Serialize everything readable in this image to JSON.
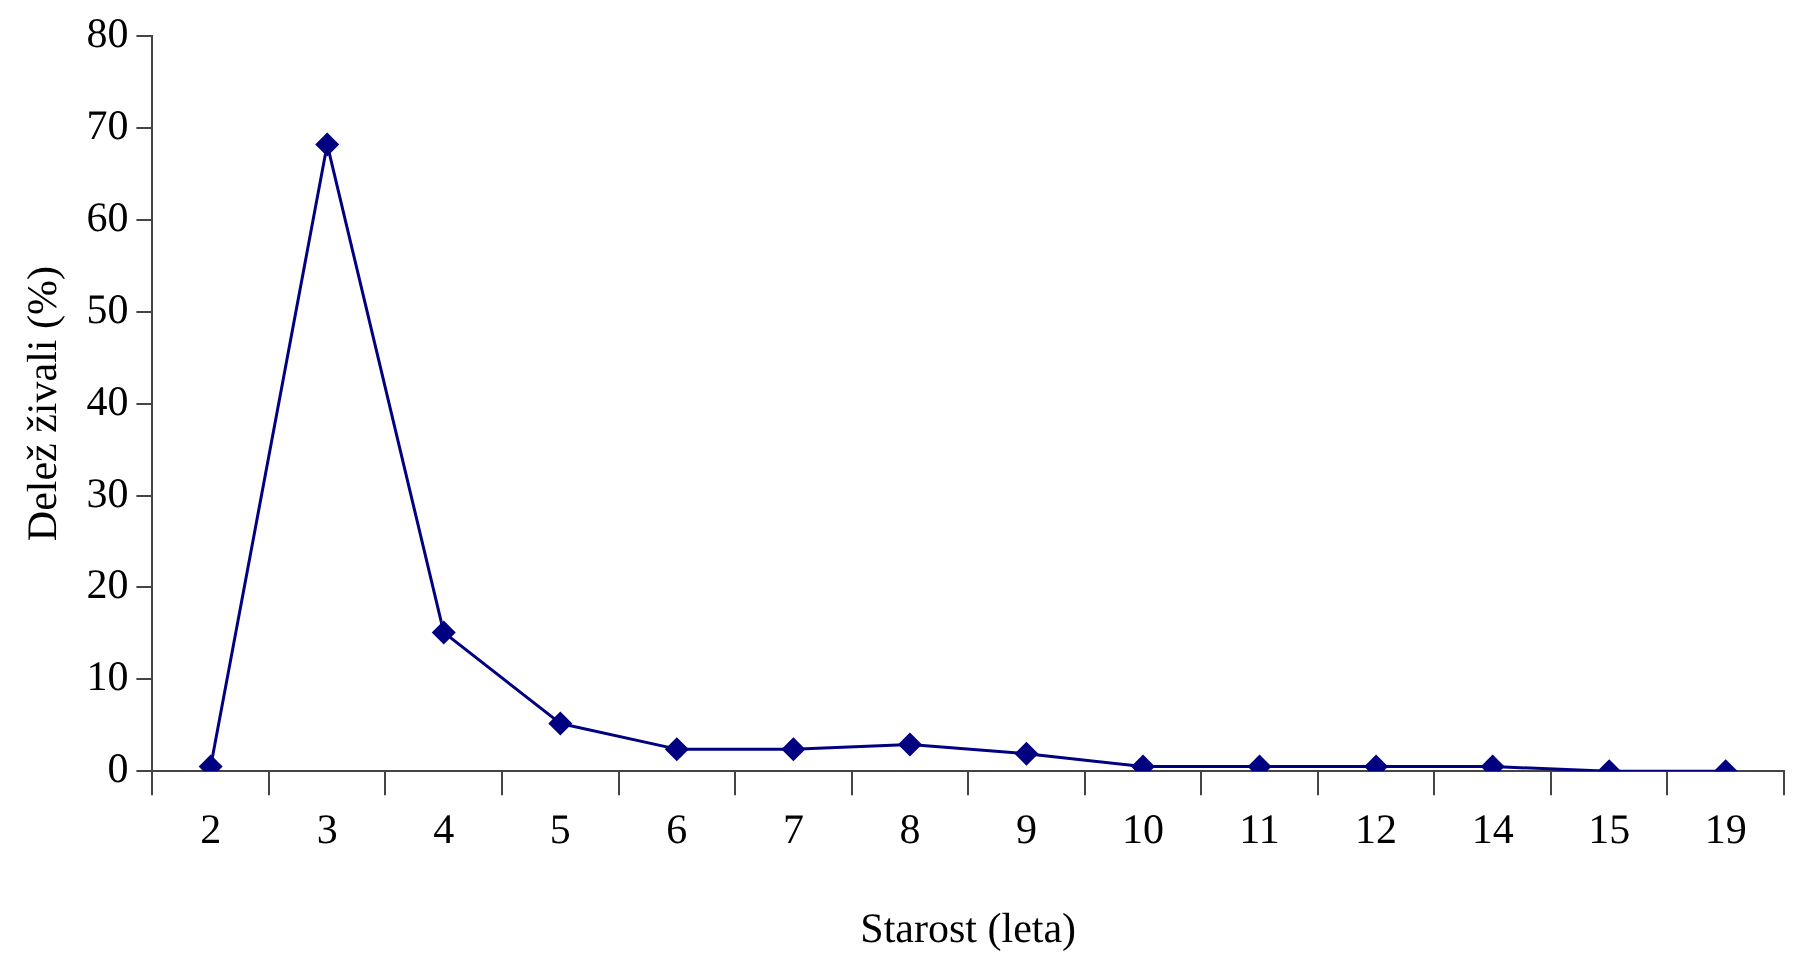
{
  "chart_data": {
    "type": "line",
    "xlabel": "Starost (leta)",
    "ylabel": "Delež živali (%)",
    "categories": [
      "2",
      "3",
      "4",
      "5",
      "6",
      "7",
      "8",
      "9",
      "10",
      "11",
      "12",
      "14",
      "15",
      "19"
    ],
    "series": [
      {
        "color": "#000080",
        "values": [
          0.5,
          68.2,
          15.1,
          5.2,
          2.4,
          2.4,
          2.9,
          1.9,
          0.5,
          0.5,
          0.5,
          0.5,
          0,
          0
        ]
      }
    ],
    "ylim": [
      0,
      80
    ],
    "yticks": [
      0,
      10,
      20,
      30,
      40,
      50,
      60,
      70,
      80
    ],
    "grid": false,
    "legend": false,
    "marker": "diamond",
    "line_style": "solid"
  }
}
